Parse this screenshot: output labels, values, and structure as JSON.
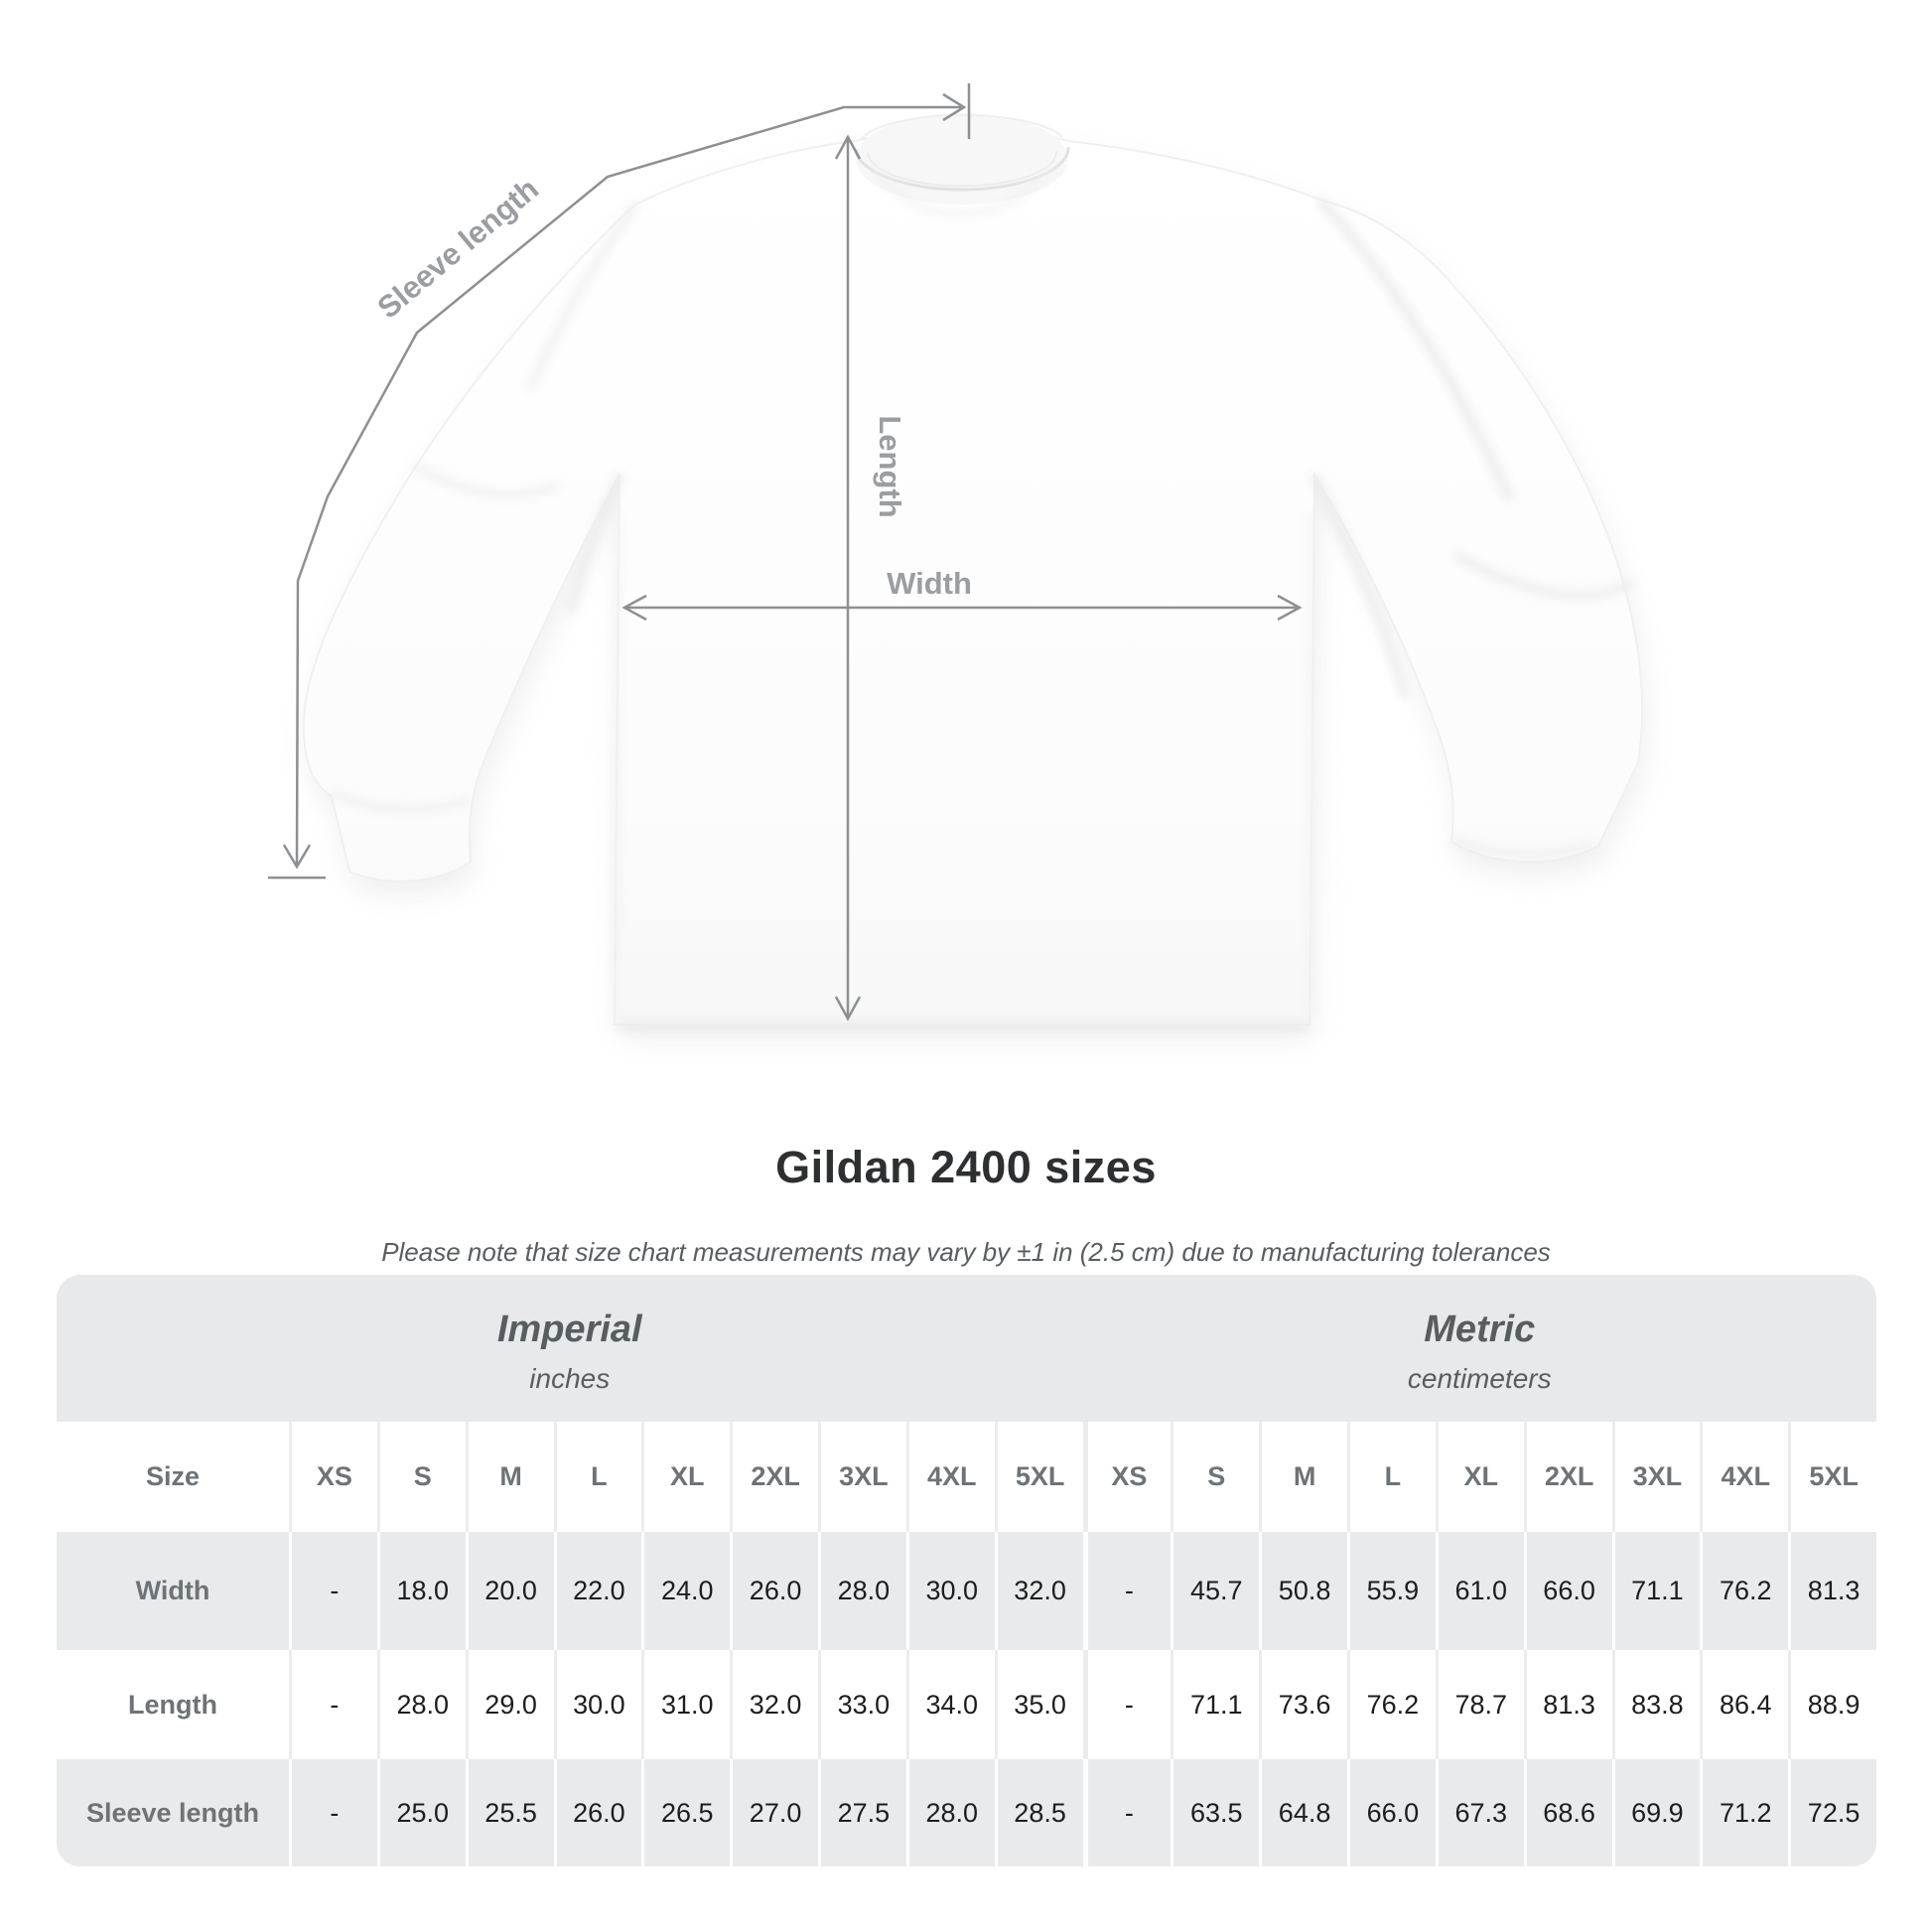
{
  "diagram": {
    "labels": {
      "sleeve_length": "Sleeve length",
      "length": "Length",
      "width": "Width"
    },
    "line_color": "#8d9093",
    "label_color": "#9a9da1",
    "shirt_color": "#fdfdfd"
  },
  "heading": {
    "title": "Gildan 2400 sizes",
    "subtitle": "Please note that size chart measurements may vary by ±1 in (2.5 cm) due to manufacturing tolerances"
  },
  "size_table": {
    "sections": [
      {
        "title": "Imperial",
        "unit": "inches"
      },
      {
        "title": "Metric",
        "unit": "centimeters"
      }
    ],
    "corner_label": "Size",
    "size_headers": [
      "XS",
      "S",
      "M",
      "L",
      "XL",
      "2XL",
      "3XL",
      "4XL",
      "5XL"
    ],
    "rows": [
      {
        "label": "Width",
        "imperial": [
          "-",
          "18.0",
          "20.0",
          "22.0",
          "24.0",
          "26.0",
          "28.0",
          "30.0",
          "32.0"
        ],
        "metric": [
          "-",
          "45.7",
          "50.8",
          "55.9",
          "61.0",
          "66.0",
          "71.1",
          "76.2",
          "81.3"
        ]
      },
      {
        "label": "Length",
        "imperial": [
          "-",
          "28.0",
          "29.0",
          "30.0",
          "31.0",
          "32.0",
          "33.0",
          "34.0",
          "35.0"
        ],
        "metric": [
          "-",
          "71.1",
          "73.6",
          "76.2",
          "78.7",
          "81.3",
          "83.8",
          "86.4",
          "88.9"
        ]
      },
      {
        "label": "Sleeve length",
        "imperial": [
          "-",
          "25.0",
          "25.5",
          "26.0",
          "26.5",
          "27.0",
          "27.5",
          "28.0",
          "28.5"
        ],
        "metric": [
          "-",
          "63.5",
          "64.8",
          "66.0",
          "67.3",
          "68.6",
          "69.9",
          "71.2",
          "72.5"
        ]
      }
    ],
    "colors": {
      "band_background": "#e8e9ea",
      "alt_row_background": "#e9eaeb",
      "header_text": "#6d7377",
      "value_text": "#1d1d1d"
    }
  }
}
